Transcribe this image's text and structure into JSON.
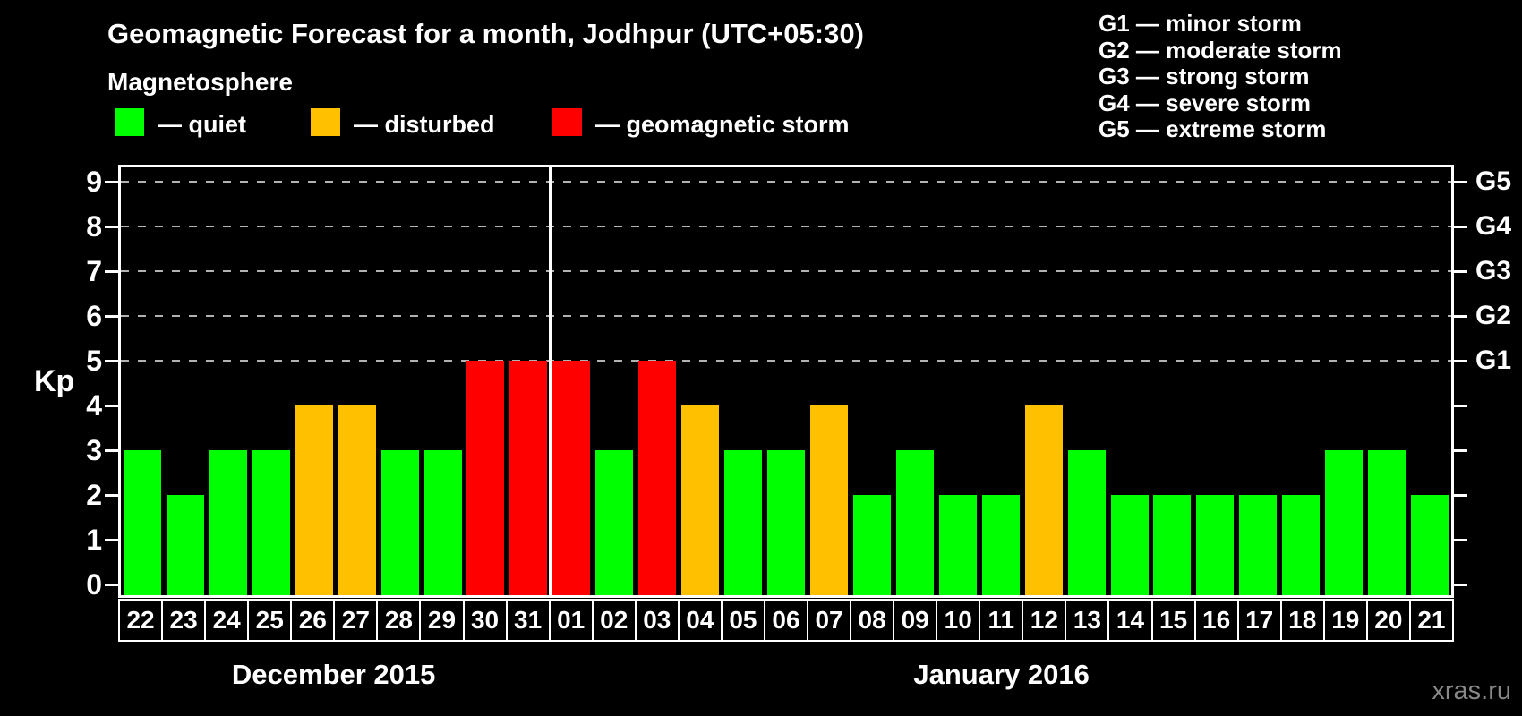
{
  "title": "Geomagnetic Forecast for a month, Jodhpur (UTC+05:30)",
  "subtitle": "Magnetosphere",
  "legend": {
    "items": [
      {
        "key": "quiet",
        "label": "— quiet",
        "color": "#00ff00"
      },
      {
        "key": "disturbed",
        "label": "— disturbed",
        "color": "#ffc000"
      },
      {
        "key": "storm",
        "label": "— geomagnetic storm",
        "color": "#ff0000"
      }
    ]
  },
  "g_legend": [
    "G1 — minor storm",
    "G2 — moderate storm",
    "G3 — strong storm",
    "G4 — severe storm",
    "G5 — extreme storm"
  ],
  "watermark": "xras.ru",
  "chart_data": {
    "type": "bar",
    "title": "Geomagnetic Forecast for a month, Jodhpur (UTC+05:30)",
    "ylabel": "Kp",
    "ylim": [
      0,
      9.35
    ],
    "yticks": [
      0,
      1,
      2,
      3,
      4,
      5,
      6,
      7,
      8,
      9
    ],
    "gridlines_at": [
      5,
      6,
      7,
      8,
      9
    ],
    "grid": true,
    "legend_position": "top-left",
    "right_axis": [
      {
        "label": "G1",
        "kp": 5
      },
      {
        "label": "G2",
        "kp": 6
      },
      {
        "label": "G3",
        "kp": 7
      },
      {
        "label": "G4",
        "kp": 8
      },
      {
        "label": "G5",
        "kp": 9
      }
    ],
    "months": [
      {
        "label": "December 2015",
        "days": 10
      },
      {
        "label": "January 2016",
        "days": 21
      }
    ],
    "categories": [
      "22",
      "23",
      "24",
      "25",
      "26",
      "27",
      "28",
      "29",
      "30",
      "31",
      "01",
      "02",
      "03",
      "04",
      "05",
      "06",
      "07",
      "08",
      "09",
      "10",
      "11",
      "12",
      "13",
      "14",
      "15",
      "16",
      "17",
      "18",
      "19",
      "20",
      "21"
    ],
    "values": [
      3,
      2,
      3,
      3,
      4,
      4,
      3,
      3,
      5,
      5,
      5,
      3,
      5,
      4,
      3,
      3,
      4,
      2,
      3,
      2,
      2,
      4,
      3,
      2,
      2,
      2,
      2,
      2,
      3,
      3,
      2
    ],
    "statuses": [
      "quiet",
      "quiet",
      "quiet",
      "quiet",
      "disturbed",
      "disturbed",
      "quiet",
      "quiet",
      "storm",
      "storm",
      "storm",
      "quiet",
      "storm",
      "disturbed",
      "quiet",
      "quiet",
      "disturbed",
      "quiet",
      "quiet",
      "quiet",
      "quiet",
      "disturbed",
      "quiet",
      "quiet",
      "quiet",
      "quiet",
      "quiet",
      "quiet",
      "quiet",
      "quiet",
      "quiet"
    ]
  }
}
